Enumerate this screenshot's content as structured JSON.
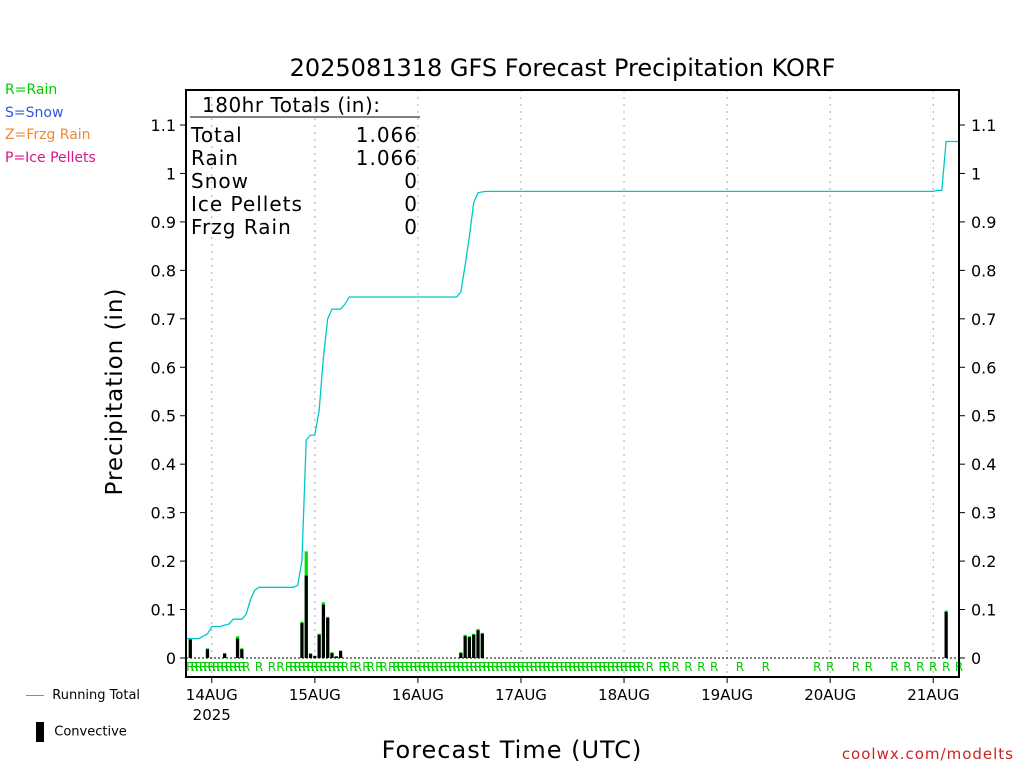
{
  "chart_data": {
    "type": "bar",
    "title": "2025081318 GFS Forecast Precipitation KORF",
    "xlabel": "Forecast Time (UTC)",
    "ylabel": "Precipitation (in)",
    "ylim": [
      0,
      1.17
    ],
    "yticks": [
      0,
      0.1,
      0.2,
      0.3,
      0.4,
      0.5,
      0.6,
      0.7,
      0.8,
      0.9,
      1,
      1.1
    ],
    "yticks_right": [
      0,
      0.1,
      0.2,
      0.3,
      0.4,
      0.5,
      0.6,
      0.7,
      0.8,
      0.9,
      1,
      1.1
    ],
    "x_start": "2025-08-13 18Z",
    "x_end": "2025-08-21 06Z",
    "xlim_hours": [
      0,
      180
    ],
    "grid": "vertical dotted at 00Z each day",
    "xticks": [
      {
        "hour": 6,
        "label": "14AUG",
        "sub": "2025"
      },
      {
        "hour": 30,
        "label": "15AUG"
      },
      {
        "hour": 54,
        "label": "16AUG"
      },
      {
        "hour": 78,
        "label": "17AUG"
      },
      {
        "hour": 102,
        "label": "18AUG"
      },
      {
        "hour": 126,
        "label": "19AUG"
      },
      {
        "hour": 150,
        "label": "20AUG"
      },
      {
        "hour": 174,
        "label": "21AUG"
      }
    ],
    "ptype_markers": [
      1,
      2,
      3,
      4,
      5,
      6,
      7,
      8,
      9,
      10,
      11,
      12,
      13,
      14,
      17,
      20,
      22,
      24,
      25,
      26,
      27,
      28,
      29,
      30,
      31,
      32,
      33,
      34,
      35,
      36,
      37,
      39,
      40,
      42,
      43,
      45,
      46,
      48,
      49,
      50,
      51,
      52,
      53,
      54,
      55,
      56,
      57,
      58,
      59,
      60,
      61,
      62,
      63,
      64,
      65,
      66,
      67,
      68,
      69,
      70,
      71,
      72,
      73,
      74,
      75,
      76,
      77,
      78,
      79,
      80,
      81,
      82,
      83,
      84,
      85,
      86,
      87,
      88,
      89,
      90,
      91,
      92,
      93,
      94,
      95,
      96,
      97,
      98,
      99,
      100,
      101,
      102,
      103,
      104,
      105,
      106,
      108,
      111,
      112,
      114,
      117,
      120,
      123,
      129,
      135,
      147,
      150,
      156,
      159,
      165,
      168,
      171,
      174,
      177,
      180
    ],
    "ptype_letter": "R",
    "series": [
      {
        "name": "Running Total",
        "color": "#00c8c8",
        "x": [
          0,
          3,
          4,
          5,
          6,
          7,
          8,
          9,
          10,
          11,
          12,
          13,
          14,
          15,
          16,
          17,
          18,
          19,
          20,
          21,
          22,
          23,
          24,
          25,
          26,
          27,
          28,
          29,
          30,
          31,
          32,
          33,
          34,
          35,
          36,
          37,
          38,
          39,
          40,
          42,
          48,
          54,
          60,
          63,
          64,
          65,
          66,
          67,
          68,
          69,
          70,
          71,
          72,
          75,
          78,
          90,
          102,
          114,
          126,
          138,
          150,
          162,
          174,
          175,
          176,
          177,
          180
        ],
        "y": [
          0.04,
          0.04,
          0.045,
          0.05,
          0.065,
          0.065,
          0.065,
          0.068,
          0.07,
          0.08,
          0.08,
          0.08,
          0.09,
          0.12,
          0.14,
          0.146,
          0.146,
          0.146,
          0.146,
          0.146,
          0.146,
          0.146,
          0.146,
          0.146,
          0.15,
          0.2,
          0.45,
          0.46,
          0.46,
          0.51,
          0.62,
          0.7,
          0.72,
          0.72,
          0.72,
          0.73,
          0.745,
          0.745,
          0.745,
          0.745,
          0.745,
          0.745,
          0.745,
          0.745,
          0.755,
          0.81,
          0.87,
          0.94,
          0.96,
          0.962,
          0.963,
          0.963,
          0.963,
          0.963,
          0.963,
          0.963,
          0.963,
          0.963,
          0.963,
          0.963,
          0.963,
          0.963,
          0.963,
          0.965,
          0.965,
          1.066,
          1.066
        ]
      },
      {
        "name": "Rain",
        "color": "#00dd00",
        "x": [
          1,
          5,
          9,
          12,
          13,
          27,
          28,
          29,
          30,
          31,
          32,
          33,
          34,
          35,
          36,
          64,
          65,
          66,
          67,
          68,
          69,
          177
        ],
        "values": [
          0.04,
          0.02,
          0.01,
          0.045,
          0.02,
          0.075,
          0.22,
          0.01,
          0.005,
          0.05,
          0.115,
          0.085,
          0.012,
          0.004,
          0.008,
          0.012,
          0.048,
          0.045,
          0.05,
          0.06,
          0.052,
          0.098
        ]
      },
      {
        "name": "Convective",
        "color": "#000000",
        "x": [
          1,
          5,
          9,
          12,
          13,
          27,
          28,
          29,
          30,
          31,
          32,
          33,
          34,
          35,
          36,
          64,
          65,
          66,
          67,
          68,
          69,
          177
        ],
        "values": [
          0.038,
          0.018,
          0.009,
          0.04,
          0.018,
          0.072,
          0.17,
          0.008,
          0.004,
          0.048,
          0.11,
          0.083,
          0.01,
          0.003,
          0.015,
          0.01,
          0.045,
          0.043,
          0.048,
          0.057,
          0.05,
          0.095
        ]
      }
    ]
  },
  "totals": {
    "header": "180hr Totals (in):",
    "rows": [
      {
        "label": "Total",
        "value": "1.066"
      },
      {
        "label": "Rain",
        "value": "1.066"
      },
      {
        "label": "Snow",
        "value": "0"
      },
      {
        "label": "Ice Pellets",
        "value": "0"
      },
      {
        "label": "Frzg Rain",
        "value": "0"
      }
    ]
  },
  "ptype_legend": [
    {
      "text": "R=Rain",
      "color": "#00cc00"
    },
    {
      "text": "S=Snow",
      "color": "#3355dd"
    },
    {
      "text": "Z=Frzg Rain",
      "color": "#ee8833"
    },
    {
      "text": "P=Ice Pellets",
      "color": "#dd1188"
    }
  ],
  "series_legend": {
    "running_total": "Running Total",
    "convective": "Convective"
  },
  "credit": "coolwx.com/modelts"
}
